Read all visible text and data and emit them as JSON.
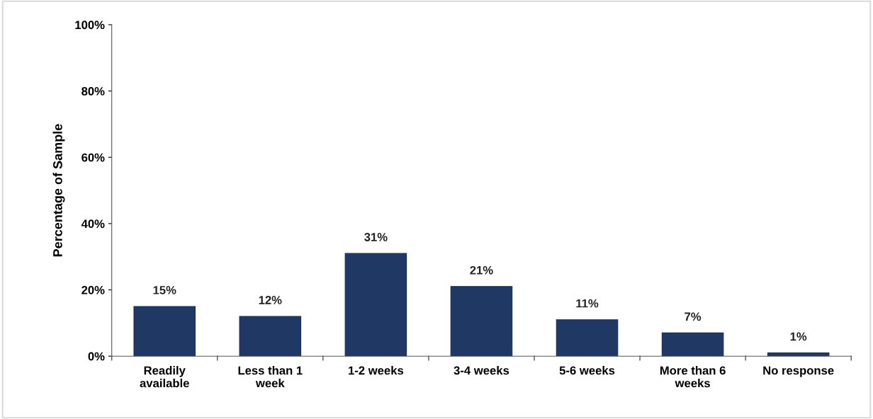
{
  "chart_data": {
    "type": "bar",
    "ylabel": "Percentage of Sample",
    "categories": [
      "Readily\navailable",
      "Less than 1\nweek",
      "1-2 weeks",
      "3-4 weeks",
      "5-6 weeks",
      "More than 6\nweeks",
      "No response"
    ],
    "values": [
      15,
      12,
      31,
      21,
      11,
      7,
      1
    ],
    "value_labels": [
      "15%",
      "12%",
      "31%",
      "21%",
      "11%",
      "7%",
      "1%"
    ],
    "color": "#1f3864",
    "ylim": [
      0,
      100
    ],
    "yticks": [
      {
        "value": 0,
        "label": "0%"
      },
      {
        "value": 20,
        "label": "20%"
      },
      {
        "value": 40,
        "label": "40%"
      },
      {
        "value": 60,
        "label": "60%"
      },
      {
        "value": 80,
        "label": "80%"
      },
      {
        "value": 100,
        "label": "100%"
      }
    ],
    "grid": false,
    "legend": false
  }
}
